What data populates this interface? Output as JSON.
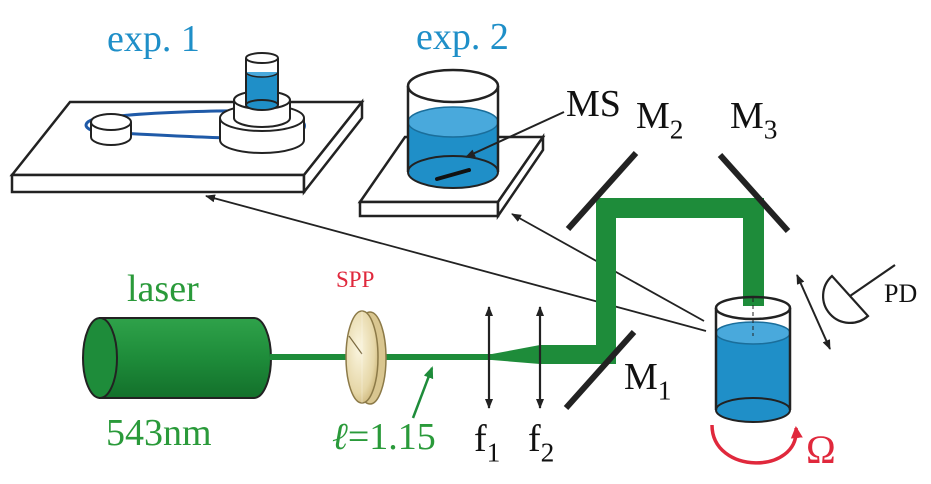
{
  "labels": {
    "exp1": "exp. 1",
    "exp2": "exp. 2",
    "laser": "laser",
    "wavelength": "543nm",
    "spp": "SPP",
    "ell_symbol": "ℓ",
    "ell_value": "=1.15",
    "ms": "MS",
    "mirror_letter": "M",
    "m1_sub": "1",
    "m2_sub": "2",
    "m3_sub": "3",
    "lens_letter": "f",
    "f1_sub": "1",
    "f2_sub": "2",
    "pd": "PD",
    "omega": "Ω"
  },
  "colors": {
    "beam": "#1e8c3a",
    "water": "#1f8fc8",
    "belt": "#1f5aa8",
    "exp_text": "#1f8fc8",
    "laser_text": "#2a9a3a",
    "spp_text": "#e0283c",
    "rotation": "#e0283c",
    "plate": "#7a6a40"
  }
}
